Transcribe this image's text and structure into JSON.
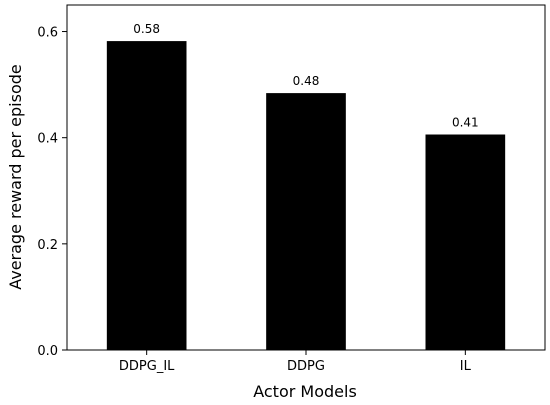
{
  "chart_data": {
    "type": "bar",
    "categories": [
      "DDPG_IL",
      "DDPG",
      "IL"
    ],
    "values": [
      0.582,
      0.484,
      0.406
    ],
    "data_labels": [
      "0.58",
      "0.48",
      "0.41"
    ],
    "title": "",
    "xlabel": "Actor Models",
    "ylabel": "Average reward per episode",
    "ylim": [
      0,
      0.65
    ],
    "yticks": [
      0.0,
      0.2,
      0.4,
      0.6
    ],
    "ytick_labels": [
      "0.0",
      "0.2",
      "0.4",
      "0.6"
    ],
    "grid": false,
    "bar_color": "#000000"
  }
}
